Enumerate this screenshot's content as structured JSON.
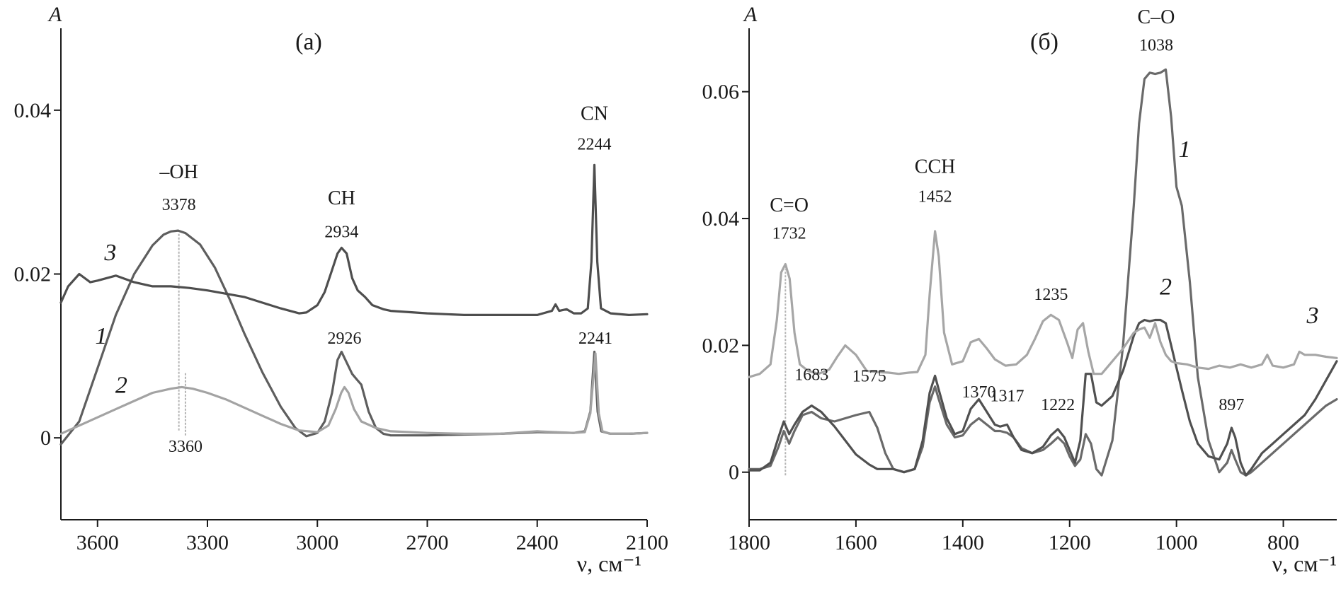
{
  "chart_data": [
    {
      "type": "line",
      "title": "(a)",
      "xlabel": "ν, см⁻¹",
      "ylabel": "A",
      "xlim": [
        3700,
        2100
      ],
      "ylim": [
        -0.01,
        0.05
      ],
      "x_ticks": [
        3600,
        3300,
        3000,
        2700,
        2400,
        2100
      ],
      "x_tick_labels": [
        "3600",
        "3300",
        "3000",
        "2700",
        "2400",
        "2100"
      ],
      "y_ticks": [
        0,
        0.02,
        0.04
      ],
      "y_tick_labels": [
        "0",
        "0.02",
        "0.04"
      ],
      "grid": false,
      "legend": "none",
      "series": [
        {
          "name": "1",
          "color": "#5e5e5e",
          "x": [
            3700,
            3650,
            3600,
            3550,
            3500,
            3450,
            3420,
            3400,
            3380,
            3360,
            3320,
            3280,
            3240,
            3200,
            3150,
            3100,
            3060,
            3030,
            3000,
            2980,
            2960,
            2945,
            2934,
            2920,
            2905,
            2890,
            2880,
            2860,
            2840,
            2820,
            2800,
            2700,
            2600,
            2500,
            2400,
            2300,
            2270,
            2255,
            2244,
            2235,
            2225,
            2200,
            2150,
            2100
          ],
          "y": [
            -0.0008,
            0.002,
            0.0085,
            0.015,
            0.02,
            0.0235,
            0.0248,
            0.0252,
            0.0253,
            0.025,
            0.0236,
            0.0208,
            0.017,
            0.0128,
            0.008,
            0.0038,
            0.0012,
            0.0002,
            0.0006,
            0.002,
            0.0055,
            0.0095,
            0.0105,
            0.0092,
            0.0078,
            0.007,
            0.0065,
            0.0032,
            0.0012,
            0.0005,
            0.0003,
            0.0003,
            0.0004,
            0.0005,
            0.0007,
            0.0006,
            0.0008,
            0.0032,
            0.0105,
            0.0032,
            0.0008,
            0.0005,
            0.0005,
            0.0006
          ]
        },
        {
          "name": "2",
          "color": "#a3a3a3",
          "x": [
            3700,
            3650,
            3600,
            3550,
            3500,
            3450,
            3400,
            3370,
            3340,
            3300,
            3250,
            3200,
            3150,
            3100,
            3050,
            3000,
            2970,
            2950,
            2935,
            2926,
            2915,
            2900,
            2880,
            2860,
            2840,
            2800,
            2700,
            2600,
            2500,
            2400,
            2300,
            2270,
            2255,
            2241,
            2232,
            2222,
            2200,
            2150,
            2100
          ],
          "y": [
            0.0005,
            0.0015,
            0.0025,
            0.0035,
            0.0045,
            0.0055,
            0.006,
            0.0062,
            0.006,
            0.0055,
            0.0047,
            0.0037,
            0.0027,
            0.0017,
            0.0009,
            0.0007,
            0.0015,
            0.0035,
            0.0055,
            0.0062,
            0.0055,
            0.0035,
            0.002,
            0.0016,
            0.0012,
            0.0008,
            0.0006,
            0.0005,
            0.0005,
            0.0008,
            0.0006,
            0.0007,
            0.003,
            0.0103,
            0.003,
            0.0008,
            0.0005,
            0.0005,
            0.0006
          ]
        },
        {
          "name": "3",
          "color": "#4e4e4e",
          "x": [
            3700,
            3680,
            3650,
            3620,
            3600,
            3550,
            3500,
            3450,
            3400,
            3350,
            3300,
            3250,
            3200,
            3150,
            3100,
            3050,
            3030,
            3000,
            2980,
            2960,
            2945,
            2934,
            2920,
            2905,
            2890,
            2870,
            2850,
            2820,
            2800,
            2700,
            2600,
            2500,
            2400,
            2360,
            2350,
            2340,
            2320,
            2300,
            2280,
            2262,
            2252,
            2244,
            2236,
            2226,
            2200,
            2150,
            2100
          ],
          "y": [
            0.0165,
            0.0185,
            0.02,
            0.019,
            0.0192,
            0.0198,
            0.019,
            0.0185,
            0.0185,
            0.0183,
            0.018,
            0.0176,
            0.0172,
            0.0165,
            0.0158,
            0.0152,
            0.0153,
            0.0162,
            0.0178,
            0.0205,
            0.0225,
            0.0232,
            0.0225,
            0.0195,
            0.018,
            0.0172,
            0.0162,
            0.0157,
            0.0155,
            0.0152,
            0.015,
            0.015,
            0.015,
            0.0155,
            0.0163,
            0.0155,
            0.0157,
            0.0152,
            0.0152,
            0.0158,
            0.0215,
            0.0333,
            0.0215,
            0.0158,
            0.0152,
            0.015,
            0.0151
          ]
        }
      ],
      "annotations": {
        "groups": [
          {
            "text": "–OH",
            "x": 3378,
            "y": 0.0317
          },
          {
            "text": "CH",
            "x": 2934,
            "y": 0.0285
          },
          {
            "text": "CN",
            "x": 2244,
            "y": 0.0388
          }
        ],
        "peaks": [
          {
            "text": "3378",
            "x": 3378,
            "y": 0.0278
          },
          {
            "text": "2934",
            "x": 2934,
            "y": 0.0245
          },
          {
            "text": "2244",
            "x": 2244,
            "y": 0.0352
          },
          {
            "text": "2926",
            "x": 2926,
            "y": 0.0115
          },
          {
            "text": "2241",
            "x": 2241,
            "y": 0.0115
          },
          {
            "text": "3360",
            "x": 3360,
            "y": -0.0017
          }
        ],
        "curve_labels": [
          {
            "text": "3",
            "x": 3565,
            "y": 0.0217
          },
          {
            "text": "1",
            "x": 3590,
            "y": 0.0115
          },
          {
            "text": "2",
            "x": 3535,
            "y": 0.0055
          }
        ],
        "markers": [
          {
            "x": 3378,
            "y0": 0.0009,
            "y1": 0.025
          },
          {
            "x": 3360,
            "y0": 0.0003,
            "y1": 0.008
          }
        ]
      }
    },
    {
      "type": "line",
      "title": "(б)",
      "xlabel": "ν, см⁻¹",
      "ylabel": "A",
      "xlim": [
        1800,
        700
      ],
      "ylim": [
        -0.0075,
        0.07
      ],
      "x_ticks": [
        1800,
        1600,
        1400,
        1200,
        1000,
        800
      ],
      "x_tick_labels": [
        "1800",
        "1600",
        "1400",
        "1200",
        "1000",
        "800"
      ],
      "y_ticks": [
        0,
        0.02,
        0.04,
        0.06
      ],
      "y_tick_labels": [
        "0",
        "0.02",
        "0.04",
        "0.06"
      ],
      "grid": false,
      "legend": "none",
      "series": [
        {
          "name": "1",
          "color": "#6a6a6a",
          "x": [
            1800,
            1780,
            1760,
            1745,
            1735,
            1725,
            1715,
            1700,
            1683,
            1665,
            1640,
            1620,
            1600,
            1575,
            1560,
            1545,
            1530,
            1510,
            1490,
            1475,
            1462,
            1452,
            1445,
            1430,
            1415,
            1400,
            1385,
            1370,
            1355,
            1340,
            1330,
            1317,
            1305,
            1290,
            1270,
            1250,
            1235,
            1222,
            1210,
            1200,
            1190,
            1180,
            1170,
            1160,
            1150,
            1140,
            1120,
            1100,
            1080,
            1070,
            1060,
            1050,
            1040,
            1030,
            1020,
            1010,
            1000,
            990,
            975,
            960,
            940,
            920,
            905,
            897,
            890,
            880,
            870,
            860,
            840,
            820,
            800,
            780,
            760,
            740,
            720,
            700
          ],
          "y": [
            0.0005,
            0.0005,
            0.001,
            0.004,
            0.0065,
            0.0045,
            0.0065,
            0.009,
            0.0095,
            0.0085,
            0.008,
            0.0085,
            0.009,
            0.0095,
            0.007,
            0.003,
            0.0005,
            0.0,
            0.0005,
            0.004,
            0.011,
            0.0135,
            0.0115,
            0.0075,
            0.0055,
            0.0058,
            0.0075,
            0.0085,
            0.0075,
            0.0065,
            0.0065,
            0.0062,
            0.0055,
            0.0038,
            0.003,
            0.0035,
            0.0045,
            0.0055,
            0.0045,
            0.0025,
            0.001,
            0.002,
            0.006,
            0.0045,
            0.0005,
            -0.0005,
            0.005,
            0.02,
            0.042,
            0.055,
            0.062,
            0.063,
            0.0628,
            0.063,
            0.0635,
            0.056,
            0.045,
            0.042,
            0.03,
            0.015,
            0.005,
            0.0,
            0.0015,
            0.0035,
            0.002,
            0.0,
            -0.0005,
            0.0,
            0.0015,
            0.003,
            0.0045,
            0.006,
            0.0075,
            0.009,
            0.0105,
            0.0115
          ]
        },
        {
          "name": "2",
          "color": "#505050",
          "x": [
            1800,
            1780,
            1760,
            1745,
            1735,
            1725,
            1715,
            1700,
            1683,
            1665,
            1640,
            1620,
            1600,
            1575,
            1560,
            1545,
            1530,
            1510,
            1490,
            1475,
            1462,
            1452,
            1445,
            1430,
            1415,
            1400,
            1385,
            1370,
            1355,
            1340,
            1330,
            1317,
            1305,
            1290,
            1270,
            1250,
            1235,
            1222,
            1210,
            1200,
            1190,
            1180,
            1170,
            1160,
            1150,
            1140,
            1120,
            1100,
            1080,
            1070,
            1060,
            1050,
            1040,
            1030,
            1020,
            1010,
            1000,
            990,
            975,
            960,
            940,
            920,
            905,
            897,
            890,
            880,
            870,
            860,
            840,
            820,
            800,
            780,
            760,
            740,
            720,
            700
          ],
          "y": [
            0.0003,
            0.0003,
            0.0015,
            0.0055,
            0.008,
            0.006,
            0.0075,
            0.0095,
            0.0105,
            0.0095,
            0.0072,
            0.005,
            0.0028,
            0.0012,
            0.0005,
            0.0005,
            0.0005,
            0.0,
            0.0005,
            0.005,
            0.0125,
            0.0152,
            0.013,
            0.0085,
            0.006,
            0.0065,
            0.01,
            0.0115,
            0.0095,
            0.0075,
            0.0072,
            0.0075,
            0.0055,
            0.0035,
            0.003,
            0.004,
            0.0058,
            0.0068,
            0.0055,
            0.0035,
            0.0015,
            0.005,
            0.0155,
            0.0155,
            0.011,
            0.0105,
            0.012,
            0.016,
            0.0215,
            0.0235,
            0.024,
            0.0238,
            0.024,
            0.024,
            0.0235,
            0.02,
            0.0165,
            0.013,
            0.008,
            0.0045,
            0.0025,
            0.002,
            0.0045,
            0.007,
            0.0055,
            0.0015,
            -0.0005,
            0.0005,
            0.003,
            0.0045,
            0.006,
            0.0075,
            0.009,
            0.0115,
            0.0145,
            0.0175
          ]
        },
        {
          "name": "3",
          "color": "#a6a6a6",
          "x": [
            1800,
            1780,
            1760,
            1748,
            1740,
            1732,
            1724,
            1715,
            1705,
            1690,
            1670,
            1650,
            1635,
            1620,
            1600,
            1580,
            1560,
            1540,
            1520,
            1500,
            1485,
            1470,
            1462,
            1452,
            1445,
            1435,
            1420,
            1400,
            1385,
            1370,
            1355,
            1340,
            1320,
            1300,
            1280,
            1265,
            1250,
            1235,
            1220,
            1205,
            1195,
            1185,
            1175,
            1165,
            1155,
            1140,
            1120,
            1100,
            1080,
            1070,
            1060,
            1050,
            1040,
            1030,
            1020,
            1010,
            1000,
            980,
            960,
            940,
            920,
            900,
            880,
            860,
            840,
            830,
            820,
            800,
            780,
            770,
            760,
            740,
            720,
            700
          ],
          "y": [
            0.015,
            0.0155,
            0.017,
            0.024,
            0.0315,
            0.0328,
            0.0305,
            0.022,
            0.017,
            0.016,
            0.0155,
            0.0162,
            0.0182,
            0.02,
            0.0185,
            0.016,
            0.0158,
            0.0157,
            0.0155,
            0.0157,
            0.0158,
            0.0185,
            0.028,
            0.038,
            0.034,
            0.022,
            0.017,
            0.0175,
            0.0205,
            0.021,
            0.0195,
            0.0178,
            0.0168,
            0.017,
            0.0185,
            0.021,
            0.0238,
            0.0248,
            0.024,
            0.0205,
            0.018,
            0.0225,
            0.0235,
            0.019,
            0.0155,
            0.0155,
            0.0175,
            0.0195,
            0.022,
            0.0225,
            0.0228,
            0.0212,
            0.0235,
            0.0205,
            0.0185,
            0.0175,
            0.0172,
            0.017,
            0.0165,
            0.0163,
            0.0168,
            0.0165,
            0.017,
            0.0165,
            0.017,
            0.0185,
            0.0168,
            0.0165,
            0.017,
            0.019,
            0.0185,
            0.0185,
            0.0182,
            0.018
          ]
        }
      ],
      "annotations": {
        "groups": [
          {
            "text": "C=O",
            "x": 1725,
            "y": 0.0411
          },
          {
            "text": "CCH",
            "x": 1452,
            "y": 0.0472
          },
          {
            "text": "C–O",
            "x": 1038,
            "y": 0.0708
          }
        ],
        "peaks": [
          {
            "text": "1732",
            "x": 1725,
            "y": 0.0368
          },
          {
            "text": "1452",
            "x": 1452,
            "y": 0.0426
          },
          {
            "text": "1038",
            "x": 1038,
            "y": 0.0665
          },
          {
            "text": "1235",
            "x": 1235,
            "y": 0.0272
          },
          {
            "text": "1683",
            "x": 1683,
            "y": 0.0145
          },
          {
            "text": "1575",
            "x": 1575,
            "y": 0.0143
          },
          {
            "text": "1370",
            "x": 1370,
            "y": 0.0118
          },
          {
            "text": "1317",
            "x": 1317,
            "y": 0.0112
          },
          {
            "text": "1222",
            "x": 1222,
            "y": 0.0098
          },
          {
            "text": "897",
            "x": 897,
            "y": 0.0098
          }
        ],
        "curve_labels": [
          {
            "text": "1",
            "x": 985,
            "y": 0.0497
          },
          {
            "text": "2",
            "x": 1020,
            "y": 0.028
          },
          {
            "text": "3",
            "x": 745,
            "y": 0.0235
          }
        ],
        "markers": [
          {
            "x": 1732,
            "y0": -0.0005,
            "y1": 0.032
          }
        ]
      }
    }
  ]
}
